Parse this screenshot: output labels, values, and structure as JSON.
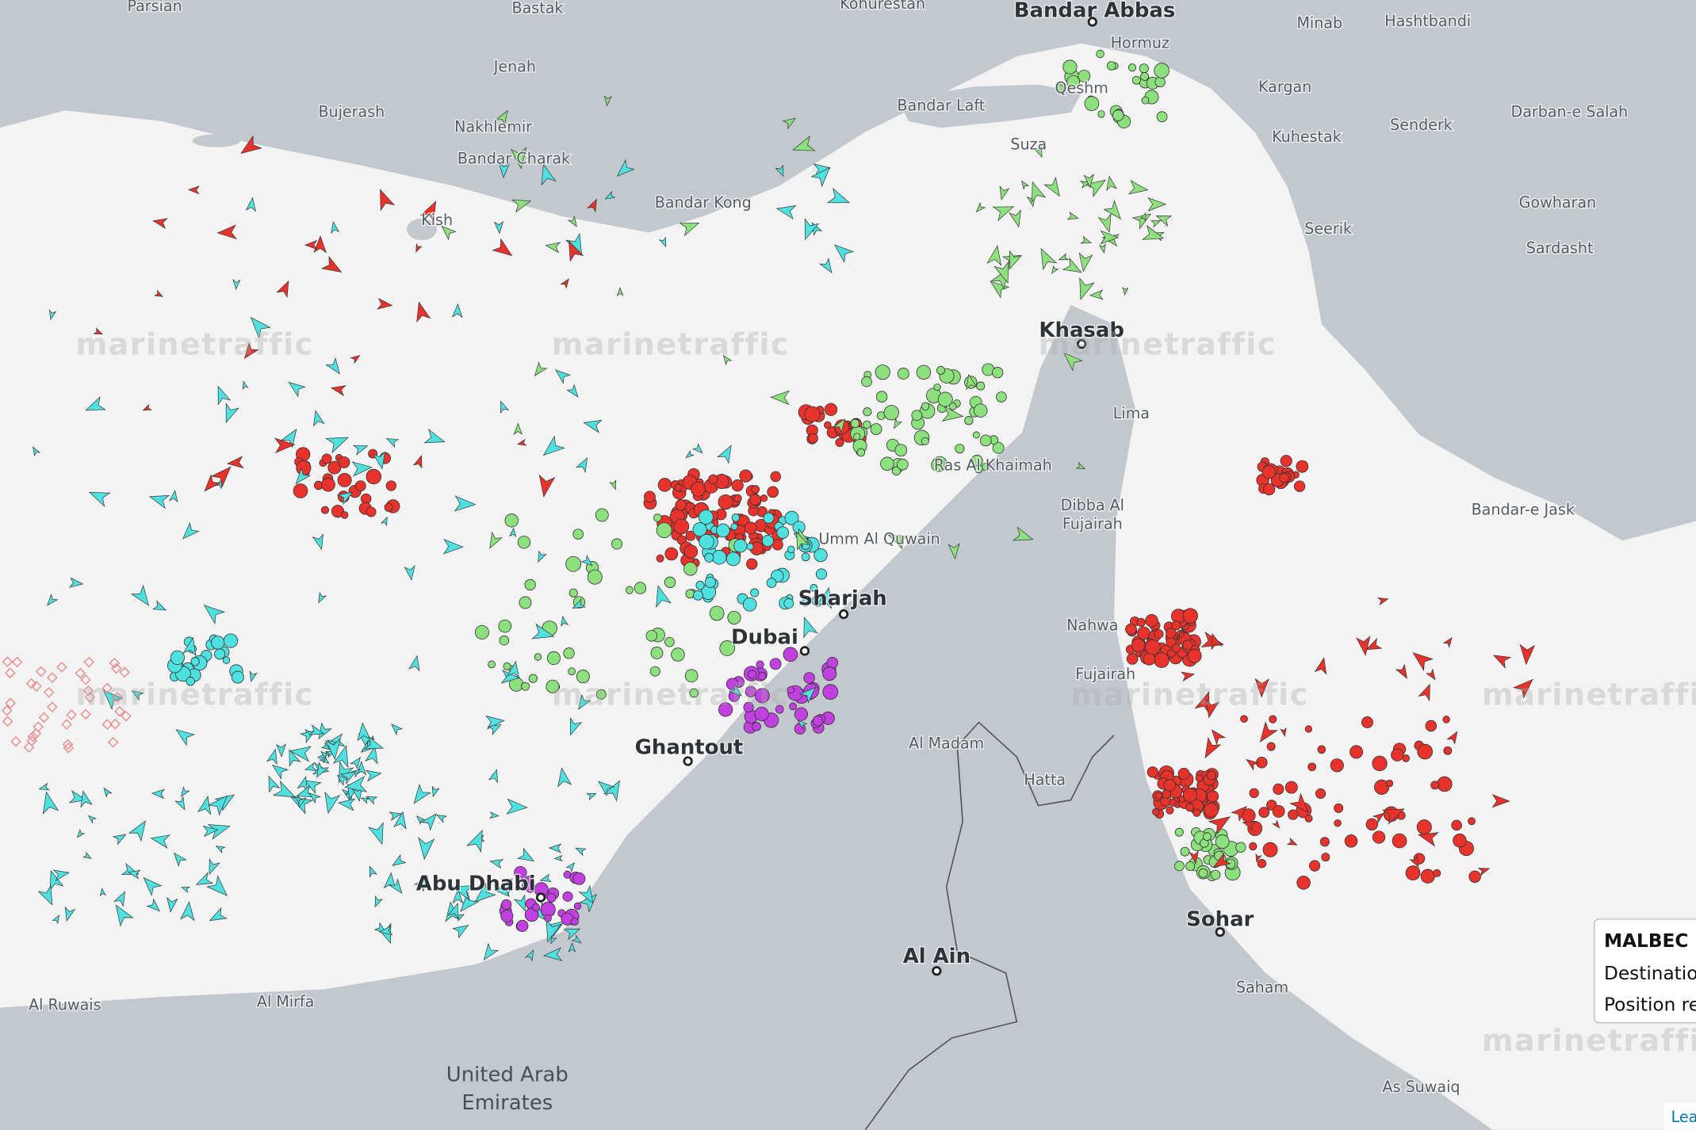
{
  "map": {
    "watermark": "marinetraffic",
    "places": [
      "Parsian",
      "Bastak",
      "Kohurestan",
      "Bandar Abbas",
      "Minab",
      "Hashtbandi",
      "Hormuz",
      "Jenah",
      "Bujerash",
      "Nakhlemir",
      "Bandar Charak",
      "Bandar Laft",
      "Qeshm",
      "Kargan",
      "Senderk",
      "Darban-e Salah",
      "Kuhestak",
      "Suza",
      "Bandar Kong",
      "Kish",
      "Gowharan",
      "Seerik",
      "Sardasht",
      "Khasab",
      "Lima",
      "Ras Al Khaimah",
      "Bandar-e Jask",
      "Dibba Al",
      "Fujairah",
      "Umm Al Quwain",
      "Sharjah",
      "Dubai",
      "Nahwa",
      "Fujairah",
      "Al Madam",
      "Hatta",
      "Ghantout",
      "Abu Dhabi",
      "Al Ain",
      "Sohar",
      "Saham",
      "Al Mirfa",
      "Al Ruwais",
      "As Suwaiq"
    ],
    "country_label": [
      "United Arab",
      "Emirates"
    ]
  },
  "tooltip": {
    "title": "MALBEC H",
    "lines": [
      "Destinatio",
      "Position re"
    ]
  },
  "attribution": "Lea"
}
